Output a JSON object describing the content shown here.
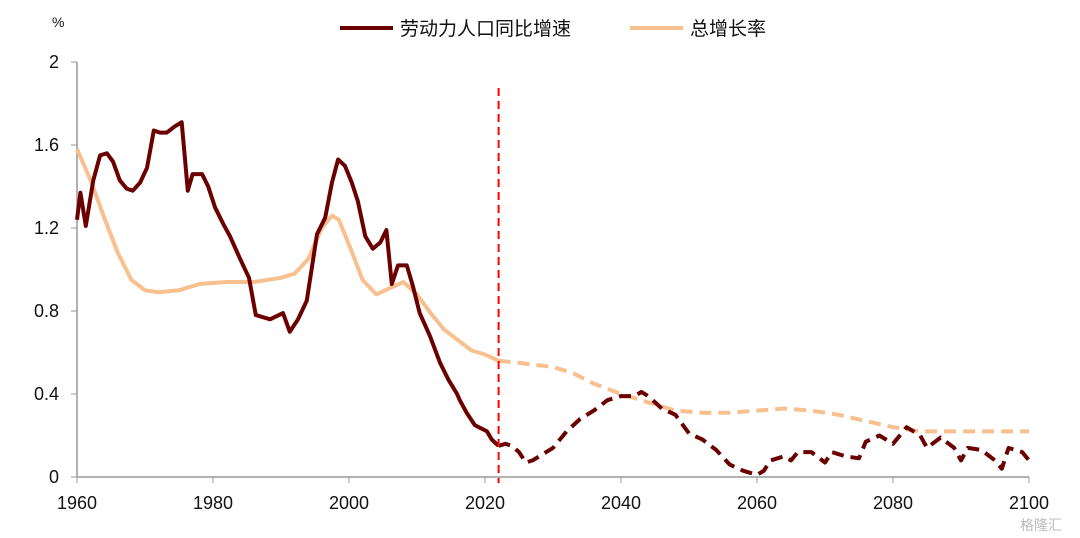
{
  "chart_data": {
    "type": "line",
    "unit_label": "%",
    "xlim": [
      1960,
      2100
    ],
    "ylim": [
      0,
      2
    ],
    "x_ticks": [
      "1960",
      "1980",
      "2000",
      "2020",
      "2040",
      "2060",
      "2080",
      "2100"
    ],
    "y_ticks": [
      "0",
      "0.4",
      "0.8",
      "1.2",
      "1.6",
      "2"
    ],
    "grid": false,
    "legend_position": "top",
    "forecast_start": 2022,
    "forecast_marker_color": "#ff0000",
    "series": [
      {
        "name": "劳动力人口同比增速",
        "color": "#6b0000",
        "points": [
          [
            1960,
            1.24
          ],
          [
            1960.5,
            1.37
          ],
          [
            1961.3,
            1.21
          ],
          [
            1962.4,
            1.43
          ],
          [
            1963.4,
            1.55
          ],
          [
            1964.4,
            1.56
          ],
          [
            1965.3,
            1.52
          ],
          [
            1966.3,
            1.43
          ],
          [
            1967.3,
            1.39
          ],
          [
            1968.2,
            1.38
          ],
          [
            1969.3,
            1.42
          ],
          [
            1970.3,
            1.49
          ],
          [
            1971.3,
            1.67
          ],
          [
            1972.2,
            1.66
          ],
          [
            1973.2,
            1.66
          ],
          [
            1974.4,
            1.69
          ],
          [
            1975.4,
            1.71
          ],
          [
            1976.3,
            1.38
          ],
          [
            1977,
            1.46
          ],
          [
            1978.4,
            1.46
          ],
          [
            1979.3,
            1.4
          ],
          [
            1980.3,
            1.3
          ],
          [
            1981.5,
            1.22
          ],
          [
            1982.5,
            1.16
          ],
          [
            1984,
            1.05
          ],
          [
            1985.3,
            0.96
          ],
          [
            1986.3,
            0.78
          ],
          [
            1988.4,
            0.76
          ],
          [
            1990.3,
            0.79
          ],
          [
            1991.3,
            0.7
          ],
          [
            1992.5,
            0.76
          ],
          [
            1993.8,
            0.85
          ],
          [
            1995.3,
            1.17
          ],
          [
            1996.5,
            1.25
          ],
          [
            1997.5,
            1.42
          ],
          [
            1998.4,
            1.53
          ],
          [
            1999.4,
            1.5
          ],
          [
            2000.4,
            1.42
          ],
          [
            2001.3,
            1.33
          ],
          [
            2002.4,
            1.16
          ],
          [
            2003.5,
            1.1
          ],
          [
            2004.6,
            1.13
          ],
          [
            2005.5,
            1.19
          ],
          [
            2006.3,
            0.93
          ],
          [
            2007.2,
            1.02
          ],
          [
            2008.5,
            1.02
          ],
          [
            2009.4,
            0.92
          ],
          [
            2010.4,
            0.79
          ],
          [
            2011.9,
            0.68
          ],
          [
            2013.4,
            0.55
          ],
          [
            2014.6,
            0.47
          ],
          [
            2015.9,
            0.4
          ],
          [
            2016.3,
            0.37
          ],
          [
            2017.3,
            0.31
          ],
          [
            2018.5,
            0.25
          ],
          [
            2020.3,
            0.22
          ],
          [
            2021,
            0.18
          ],
          [
            2022,
            0.15
          ],
          [
            2023,
            0.16
          ],
          [
            2024,
            0.15
          ],
          [
            2025,
            0.12
          ],
          [
            2026,
            0.07
          ],
          [
            2027,
            0.08
          ],
          [
            2028,
            0.1
          ],
          [
            2030,
            0.14
          ],
          [
            2032,
            0.22
          ],
          [
            2034,
            0.28
          ],
          [
            2036,
            0.32
          ],
          [
            2038,
            0.37
          ],
          [
            2040,
            0.39
          ],
          [
            2042,
            0.39
          ],
          [
            2043,
            0.41
          ],
          [
            2044,
            0.39
          ],
          [
            2046,
            0.33
          ],
          [
            2048,
            0.3
          ],
          [
            2050,
            0.21
          ],
          [
            2052,
            0.18
          ],
          [
            2054,
            0.13
          ],
          [
            2056,
            0.06
          ],
          [
            2058,
            0.03
          ],
          [
            2060,
            0.01
          ],
          [
            2061,
            0.03
          ],
          [
            2062,
            0.08
          ],
          [
            2064,
            0.1
          ],
          [
            2065,
            0.08
          ],
          [
            2066,
            0.12
          ],
          [
            2068,
            0.12
          ],
          [
            2070,
            0.07
          ],
          [
            2071,
            0.12
          ],
          [
            2073,
            0.1
          ],
          [
            2075,
            0.09
          ],
          [
            2076,
            0.17
          ],
          [
            2078,
            0.2
          ],
          [
            2080,
            0.16
          ],
          [
            2082,
            0.24
          ],
          [
            2084,
            0.2
          ],
          [
            2085,
            0.14
          ],
          [
            2087,
            0.19
          ],
          [
            2089,
            0.14
          ],
          [
            2090,
            0.08
          ],
          [
            2091,
            0.14
          ],
          [
            2093,
            0.13
          ],
          [
            2095,
            0.08
          ],
          [
            2096,
            0.04
          ],
          [
            2097,
            0.14
          ],
          [
            2099,
            0.12
          ],
          [
            2100,
            0.08
          ]
        ]
      },
      {
        "name": "总增长率",
        "color": "#f9c08f",
        "points": [
          [
            1960,
            1.58
          ],
          [
            1962,
            1.43
          ],
          [
            1964,
            1.25
          ],
          [
            1966,
            1.08
          ],
          [
            1968,
            0.95
          ],
          [
            1970,
            0.9
          ],
          [
            1972,
            0.89
          ],
          [
            1975,
            0.9
          ],
          [
            1978,
            0.93
          ],
          [
            1982,
            0.94
          ],
          [
            1986,
            0.94
          ],
          [
            1990,
            0.96
          ],
          [
            1992,
            0.98
          ],
          [
            1994,
            1.05
          ],
          [
            1996,
            1.2
          ],
          [
            1997.5,
            1.26
          ],
          [
            1998.5,
            1.24
          ],
          [
            2000,
            1.12
          ],
          [
            2002,
            0.95
          ],
          [
            2004,
            0.88
          ],
          [
            2006,
            0.91
          ],
          [
            2008,
            0.94
          ],
          [
            2010,
            0.88
          ],
          [
            2012,
            0.79
          ],
          [
            2014,
            0.71
          ],
          [
            2016,
            0.66
          ],
          [
            2018,
            0.61
          ],
          [
            2020,
            0.59
          ],
          [
            2022,
            0.56
          ],
          [
            2025,
            0.55
          ],
          [
            2030,
            0.53
          ],
          [
            2033,
            0.5
          ],
          [
            2036,
            0.45
          ],
          [
            2040,
            0.4
          ],
          [
            2044,
            0.36
          ],
          [
            2048,
            0.32
          ],
          [
            2052,
            0.31
          ],
          [
            2056,
            0.31
          ],
          [
            2060,
            0.32
          ],
          [
            2064,
            0.33
          ],
          [
            2068,
            0.32
          ],
          [
            2072,
            0.3
          ],
          [
            2076,
            0.27
          ],
          [
            2080,
            0.24
          ],
          [
            2084,
            0.22
          ],
          [
            2088,
            0.22
          ],
          [
            2092,
            0.22
          ],
          [
            2096,
            0.22
          ],
          [
            2100,
            0.22
          ]
        ]
      }
    ]
  },
  "watermark": "格隆汇"
}
